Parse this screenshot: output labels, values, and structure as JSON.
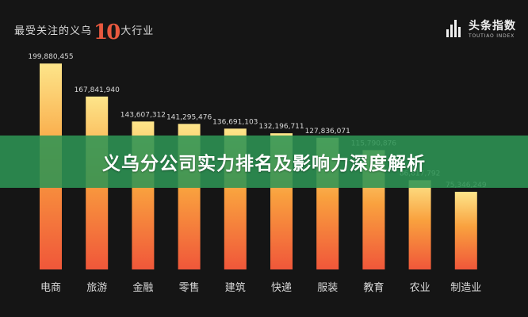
{
  "header": {
    "title_prefix": "最受关注的义乌",
    "title_number": "10",
    "title_suffix": "大行业"
  },
  "logo": {
    "icon": "bar-chart-logo-icon",
    "brand": "头条指数",
    "sub": "TOUTIAO INDEX"
  },
  "banner": {
    "text": "义乌分公司实力排名及影响力深度解析"
  },
  "colors": {
    "bar_top": "#fde58a",
    "bar_mid": "#f9a13e",
    "bar_bottom": "#f0573a",
    "label": "#d9d9d9",
    "background": "#151515",
    "banner": "#2e9454"
  },
  "chart_data": {
    "type": "bar",
    "categories": [
      "电商",
      "旅游",
      "金融",
      "零售",
      "建筑",
      "快递",
      "服装",
      "教育",
      "农业",
      "制造业"
    ],
    "values": [
      199880455,
      167841940,
      143607312,
      141295476,
      136691103,
      132196711,
      127836071,
      115790876,
      86617792,
      75346249
    ],
    "value_labels": [
      "199,880,455",
      "167,841,940",
      "143,607,312",
      "141,295,476",
      "136,691,103",
      "132,196,711",
      "127,836,071",
      "115,790,876",
      "86,617,792",
      "75,346,249"
    ],
    "title": "最受关注的义乌10大行业",
    "xlabel": "",
    "ylabel": "",
    "ylim": [
      0,
      200000000
    ],
    "grid": false,
    "legend": "none"
  }
}
